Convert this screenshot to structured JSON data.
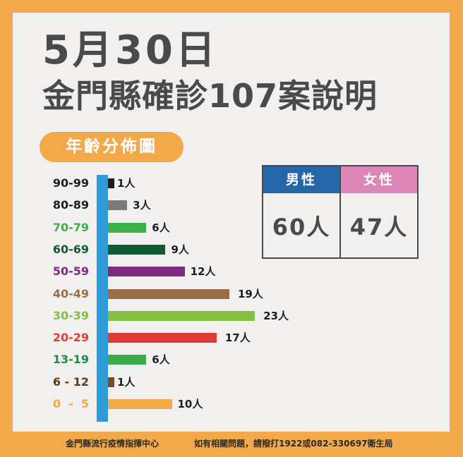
{
  "header": {
    "date": "5月30日",
    "title": "金門縣確診107案說明"
  },
  "section_badge": "年齡分佈圖",
  "colors": {
    "frame": "#F2A94A",
    "panel": "#F1F0EF",
    "axis": "#2E9BD6",
    "male_header": "#2466A8",
    "female_header": "#DB86B4",
    "text_dark": "#4A4A4A"
  },
  "chart_data": {
    "type": "bar",
    "orientation": "horizontal",
    "title": "年齡分佈圖",
    "xlabel": "",
    "ylabel": "",
    "unit": "人",
    "categories": [
      "90-99",
      "80-89",
      "70-79",
      "60-69",
      "50-59",
      "40-49",
      "30-39",
      "20-29",
      "13-19",
      "6 - 12",
      "0  -  5"
    ],
    "values": [
      1,
      3,
      6,
      9,
      12,
      19,
      23,
      17,
      6,
      1,
      10
    ],
    "value_labels": [
      "1人",
      "3人",
      "6人",
      "9人",
      "12人",
      "19人",
      "23人",
      "17人",
      "6人",
      "1人",
      "10人"
    ],
    "bar_colors": [
      "#1E1E1E",
      "#7A7A7A",
      "#3DB04B",
      "#0F5A32",
      "#7E2A80",
      "#9B6E48",
      "#86C043",
      "#DE3C36",
      "#3DAA4A",
      "#7A4A2E",
      "#F2A94A"
    ],
    "label_colors": [
      "#1E1E1E",
      "#1E1E1E",
      "#3DB04B",
      "#0F5A32",
      "#7E2A80",
      "#9B6E48",
      "#86C043",
      "#DE3C36",
      "#1E8A4A",
      "#5A3A22",
      "#F2A94A"
    ],
    "grid": false,
    "legend": null
  },
  "gender": {
    "male": {
      "label": "男性",
      "value": "60人"
    },
    "female": {
      "label": "女性",
      "value": "47人"
    }
  },
  "footer": {
    "left": "金門縣流行疫情指揮中心",
    "right": "如有相關問題，請撥打1922或082-330697衛生局"
  }
}
